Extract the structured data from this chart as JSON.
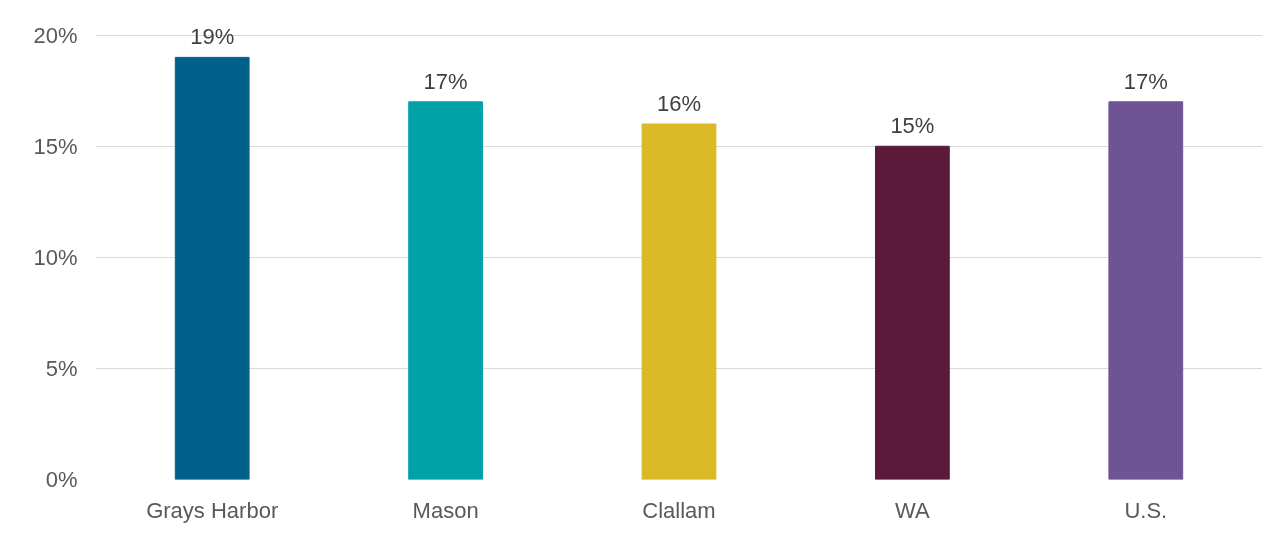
{
  "chart_data": {
    "type": "bar",
    "categories": [
      "Grays Harbor",
      "Mason",
      "Clallam",
      "WA",
      "U.S."
    ],
    "values": [
      19,
      17,
      16,
      15,
      17
    ],
    "colors": [
      "#006089",
      "#00a2a8",
      "#dbb826",
      "#5c1a3a",
      "#6e5494"
    ],
    "value_labels": [
      "19%",
      "17%",
      "16%",
      "15%",
      "17%"
    ],
    "ylim": [
      0,
      20
    ],
    "yticks": [
      {
        "value": 0,
        "label": "0%"
      },
      {
        "value": 5,
        "label": "5%"
      },
      {
        "value": 10,
        "label": "10%"
      },
      {
        "value": 15,
        "label": "15%"
      },
      {
        "value": 20,
        "label": "20%"
      }
    ],
    "grid": "y"
  }
}
